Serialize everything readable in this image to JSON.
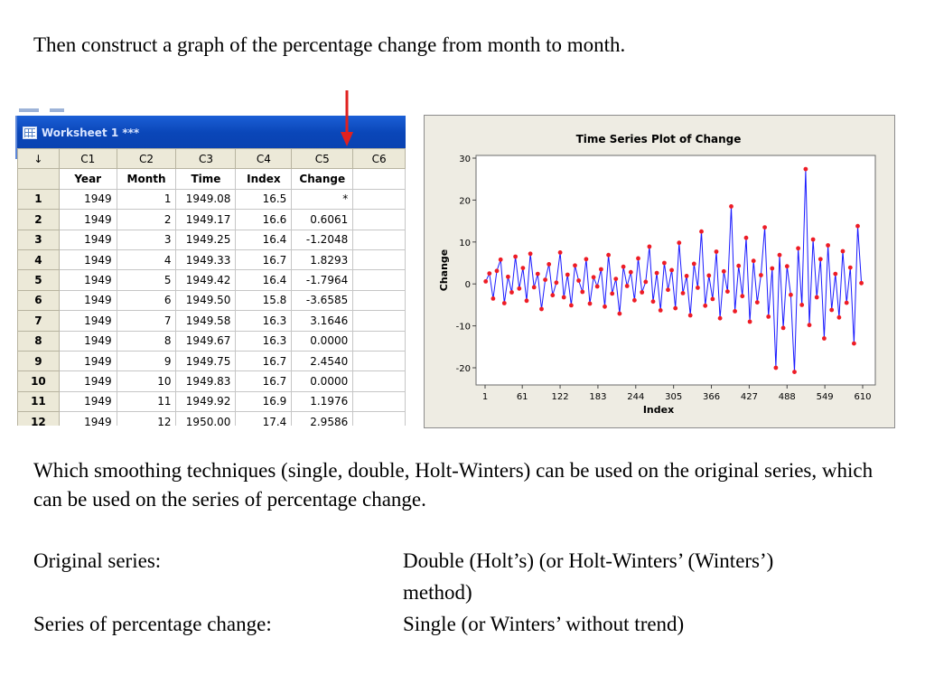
{
  "slide": {
    "intro": "Then construct a graph of the percentage change from month to month.",
    "question": "Which smoothing techniques (single, double, Holt-Winters) can be used on the original series, which can be used on the series of percentage change.",
    "answers": [
      {
        "label": "Original series:",
        "value_line1": "Double (Holt’s) (or Holt-Winters’ (Winters’)",
        "value_line2": "method)"
      },
      {
        "label": "Series of percentage change:",
        "value_line1": "Single (or Winters’ without trend)"
      }
    ]
  },
  "worksheet": {
    "title": "Worksheet 1 ***",
    "corner_glyph": "↓",
    "columns": [
      "C1",
      "C2",
      "C3",
      "C4",
      "C5",
      "C6"
    ],
    "names": [
      "Year",
      "Month",
      "Time",
      "Index",
      "Change",
      ""
    ],
    "rows": [
      {
        "n": "1",
        "cells": [
          "1949",
          "1",
          "1949.08",
          "16.5",
          "*"
        ]
      },
      {
        "n": "2",
        "cells": [
          "1949",
          "2",
          "1949.17",
          "16.6",
          "0.6061"
        ]
      },
      {
        "n": "3",
        "cells": [
          "1949",
          "3",
          "1949.25",
          "16.4",
          "-1.2048"
        ]
      },
      {
        "n": "4",
        "cells": [
          "1949",
          "4",
          "1949.33",
          "16.7",
          "1.8293"
        ]
      },
      {
        "n": "5",
        "cells": [
          "1949",
          "5",
          "1949.42",
          "16.4",
          "-1.7964"
        ]
      },
      {
        "n": "6",
        "cells": [
          "1949",
          "6",
          "1949.50",
          "15.8",
          "-3.6585"
        ]
      },
      {
        "n": "7",
        "cells": [
          "1949",
          "7",
          "1949.58",
          "16.3",
          "3.1646"
        ]
      },
      {
        "n": "8",
        "cells": [
          "1949",
          "8",
          "1949.67",
          "16.3",
          "0.0000"
        ]
      },
      {
        "n": "9",
        "cells": [
          "1949",
          "9",
          "1949.75",
          "16.7",
          "2.4540"
        ]
      },
      {
        "n": "10",
        "cells": [
          "1949",
          "10",
          "1949.83",
          "16.7",
          "0.0000"
        ]
      },
      {
        "n": "11",
        "cells": [
          "1949",
          "11",
          "1949.92",
          "16.9",
          "1.1976"
        ]
      },
      {
        "n": "12",
        "cells": [
          "1949",
          "12",
          "1950.00",
          "17.4",
          "2.9586"
        ]
      }
    ]
  },
  "colors": {
    "arrow": "#e0211f",
    "series_line": "#1a1aff",
    "series_marker": "#ee1c25",
    "chart_bg": "#eeece3",
    "plot_bg": "#ffffff"
  },
  "chart_data": {
    "type": "line",
    "title": "Time Series Plot of Change",
    "xlabel": "Index",
    "ylabel": "Change",
    "x_ticks": [
      1,
      61,
      122,
      183,
      244,
      305,
      366,
      427,
      488,
      549,
      610
    ],
    "y_ticks": [
      30,
      20,
      10,
      0,
      -10,
      -20
    ],
    "xlim": [
      1,
      610
    ],
    "ylim": [
      -23,
      31
    ],
    "grid": false,
    "legend": "none",
    "series": [
      {
        "x": [
          2,
          8,
          14,
          20,
          26,
          32,
          38,
          44,
          50,
          56,
          62,
          68,
          74,
          80,
          86,
          92,
          98,
          104,
          110,
          116,
          122,
          128,
          134,
          140,
          146,
          152,
          158,
          164,
          170,
          176,
          182,
          188,
          194,
          200,
          206,
          212,
          218,
          224,
          230,
          236,
          242,
          248,
          254,
          260,
          266,
          272,
          278,
          284,
          290,
          296,
          302,
          308,
          314,
          320,
          326,
          332,
          338,
          344,
          350,
          356,
          362,
          368,
          374,
          380,
          386,
          392,
          398,
          404,
          410,
          416,
          422,
          428,
          434,
          440,
          446,
          452,
          458,
          464,
          470,
          476,
          482,
          488,
          494,
          500,
          506,
          512,
          518,
          524,
          530,
          536,
          542,
          548,
          554,
          560,
          566,
          572,
          578,
          584,
          590,
          596,
          602,
          608
        ],
        "values": [
          0.6,
          2.5,
          -3.5,
          3.1,
          5.8,
          -4.6,
          1.7,
          -2.0,
          6.5,
          -1.1,
          3.8,
          -4.0,
          7.2,
          -0.8,
          2.4,
          -6.0,
          1.0,
          4.7,
          -2.7,
          0.3,
          7.5,
          -3.2,
          2.2,
          -5.1,
          4.4,
          0.8,
          -1.9,
          5.9,
          -4.7,
          1.6,
          -0.6,
          3.5,
          -5.4,
          6.9,
          -2.3,
          1.2,
          -7.1,
          4.1,
          -0.5,
          2.8,
          -3.9,
          6.1,
          -2.0,
          0.5,
          8.9,
          -4.2,
          2.6,
          -6.3,
          5.0,
          -1.4,
          3.3,
          -5.8,
          9.8,
          -2.2,
          1.9,
          -7.5,
          4.8,
          -0.9,
          12.5,
          -5.2,
          2.0,
          -3.6,
          7.7,
          -8.2,
          3.0,
          -1.8,
          18.5,
          -6.5,
          4.3,
          -2.9,
          11.0,
          -9.0,
          5.5,
          -4.4,
          2.1,
          13.5,
          -7.8,
          3.7,
          -20.0,
          6.9,
          -10.5,
          4.2,
          -2.6,
          -21.0,
          8.5,
          -5.0,
          27.4,
          -9.8,
          10.6,
          -3.2,
          5.9,
          -13.0,
          9.2,
          -6.2,
          2.4,
          -8.0,
          7.8,
          -4.5,
          3.9,
          -14.2,
          13.8,
          0.2
        ]
      }
    ]
  }
}
